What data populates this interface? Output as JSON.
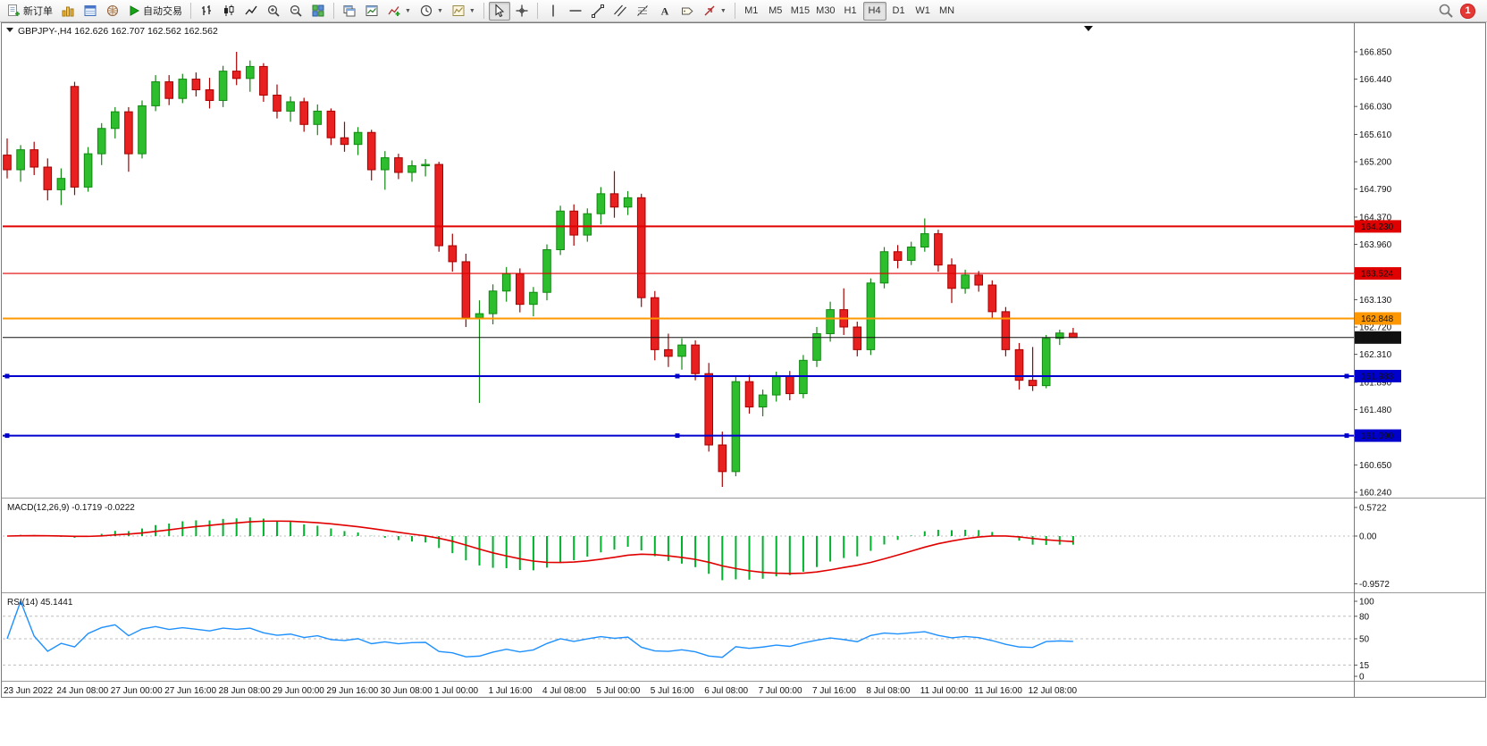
{
  "toolbar": {
    "new_order_label": "新订单",
    "autotrading_label": "自动交易",
    "timeframes": [
      "M1",
      "M5",
      "M15",
      "M30",
      "H1",
      "H4",
      "D1",
      "W1",
      "MN"
    ],
    "active_timeframe": "H4",
    "notification_badge": "1"
  },
  "chart_window": {
    "title": "GBPJPY-,H4  162.626 162.707 162.562 162.562"
  },
  "chart_data": {
    "type": "candlestick",
    "symbol": "GBPJPY-",
    "period": "H4",
    "ohlc_current": {
      "open": 162.626,
      "high": 162.707,
      "low": 162.562,
      "close": 162.562
    },
    "price_axis_ticks": [
      "166.850",
      "166.440",
      "166.030",
      "165.610",
      "165.200",
      "164.790",
      "164.370",
      "163.960",
      "163.540",
      "163.130",
      "162.720",
      "162.310",
      "161.890",
      "161.480",
      "161.070",
      "160.650",
      "160.240"
    ],
    "time_labels": [
      "23 Jun 2022",
      "24 Jun 08:00",
      "27 Jun 00:00",
      "27 Jun 16:00",
      "28 Jun 08:00",
      "29 Jun 00:00",
      "29 Jun 16:00",
      "30 Jun 08:00",
      "1 Jul 00:00",
      "1 Jul 16:00",
      "4 Jul 08:00",
      "5 Jul 00:00",
      "5 Jul 16:00",
      "6 Jul 08:00",
      "7 Jul 00:00",
      "7 Jul 16:00",
      "8 Jul 08:00",
      "11 Jul 00:00",
      "11 Jul 16:00",
      "12 Jul 08:00"
    ],
    "bars_per_time_label": 4,
    "candles": [
      [
        165.3,
        165.55,
        164.95,
        165.08
      ],
      [
        165.08,
        165.45,
        164.9,
        165.38
      ],
      [
        165.38,
        165.5,
        165.0,
        165.12
      ],
      [
        165.12,
        165.25,
        164.62,
        164.78
      ],
      [
        164.78,
        165.1,
        164.55,
        164.95
      ],
      [
        166.33,
        166.4,
        164.7,
        164.82
      ],
      [
        164.82,
        165.42,
        164.75,
        165.32
      ],
      [
        165.32,
        165.78,
        165.15,
        165.7
      ],
      [
        165.7,
        166.02,
        165.55,
        165.95
      ],
      [
        165.95,
        166.02,
        165.05,
        165.32
      ],
      [
        165.32,
        166.12,
        165.25,
        166.04
      ],
      [
        166.04,
        166.5,
        165.96,
        166.4
      ],
      [
        166.4,
        166.5,
        166.05,
        166.15
      ],
      [
        166.15,
        166.52,
        166.08,
        166.44
      ],
      [
        166.44,
        166.54,
        166.18,
        166.28
      ],
      [
        166.28,
        166.46,
        166.0,
        166.12
      ],
      [
        166.12,
        166.64,
        166.02,
        166.56
      ],
      [
        166.56,
        166.85,
        166.35,
        166.45
      ],
      [
        166.45,
        166.72,
        166.25,
        166.63
      ],
      [
        166.63,
        166.68,
        166.1,
        166.2
      ],
      [
        166.2,
        166.36,
        165.85,
        165.96
      ],
      [
        165.96,
        166.18,
        165.8,
        166.1
      ],
      [
        166.1,
        166.16,
        165.65,
        165.76
      ],
      [
        165.76,
        166.06,
        165.6,
        165.96
      ],
      [
        165.96,
        166.0,
        165.45,
        165.56
      ],
      [
        165.56,
        165.8,
        165.35,
        165.46
      ],
      [
        165.46,
        165.72,
        165.3,
        165.64
      ],
      [
        165.64,
        165.68,
        164.92,
        165.08
      ],
      [
        165.08,
        165.36,
        164.78,
        165.26
      ],
      [
        165.26,
        165.32,
        164.94,
        165.04
      ],
      [
        165.04,
        165.22,
        164.9,
        165.14
      ],
      [
        165.14,
        165.24,
        164.98,
        165.16
      ],
      [
        165.16,
        165.2,
        163.85,
        163.94
      ],
      [
        163.94,
        164.12,
        163.55,
        163.7
      ],
      [
        163.7,
        163.82,
        162.72,
        162.86
      ],
      [
        162.86,
        163.12,
        161.58,
        162.92
      ],
      [
        162.92,
        163.36,
        162.76,
        163.26
      ],
      [
        163.26,
        163.62,
        163.1,
        163.52
      ],
      [
        163.52,
        163.6,
        162.94,
        163.06
      ],
      [
        163.06,
        163.32,
        162.88,
        163.24
      ],
      [
        163.24,
        163.96,
        163.12,
        163.88
      ],
      [
        163.88,
        164.54,
        163.8,
        164.46
      ],
      [
        164.46,
        164.56,
        163.94,
        164.1
      ],
      [
        164.1,
        164.5,
        164.0,
        164.42
      ],
      [
        164.42,
        164.82,
        164.26,
        164.72
      ],
      [
        164.72,
        165.06,
        164.36,
        164.52
      ],
      [
        164.52,
        164.76,
        164.4,
        164.66
      ],
      [
        164.66,
        164.72,
        163.02,
        163.16
      ],
      [
        163.16,
        163.26,
        162.22,
        162.38
      ],
      [
        162.38,
        162.62,
        162.12,
        162.28
      ],
      [
        162.28,
        162.55,
        162.08,
        162.45
      ],
      [
        162.45,
        162.52,
        161.92,
        162.02
      ],
      [
        162.02,
        162.18,
        160.85,
        160.95
      ],
      [
        160.95,
        161.15,
        160.32,
        160.55
      ],
      [
        160.55,
        161.98,
        160.48,
        161.9
      ],
      [
        161.9,
        162.0,
        161.42,
        161.52
      ],
      [
        161.52,
        161.78,
        161.38,
        161.7
      ],
      [
        161.7,
        162.05,
        161.6,
        161.98
      ],
      [
        161.98,
        162.06,
        161.62,
        161.72
      ],
      [
        161.72,
        162.3,
        161.65,
        162.22
      ],
      [
        162.22,
        162.72,
        162.12,
        162.62
      ],
      [
        162.62,
        163.1,
        162.5,
        162.98
      ],
      [
        162.98,
        163.3,
        162.6,
        162.72
      ],
      [
        162.72,
        162.8,
        162.28,
        162.38
      ],
      [
        162.38,
        163.45,
        162.3,
        163.38
      ],
      [
        163.38,
        163.92,
        163.3,
        163.85
      ],
      [
        163.85,
        163.95,
        163.6,
        163.72
      ],
      [
        163.72,
        164.0,
        163.65,
        163.92
      ],
      [
        163.92,
        164.35,
        163.85,
        164.12
      ],
      [
        164.12,
        164.18,
        163.55,
        163.65
      ],
      [
        163.65,
        163.75,
        163.08,
        163.3
      ],
      [
        163.3,
        163.58,
        163.22,
        163.5
      ],
      [
        163.5,
        163.56,
        163.25,
        163.35
      ],
      [
        163.35,
        163.42,
        162.85,
        162.95
      ],
      [
        162.95,
        163.02,
        162.28,
        162.38
      ],
      [
        162.38,
        162.48,
        161.78,
        161.92
      ],
      [
        161.92,
        162.42,
        161.76,
        161.84
      ],
      [
        161.84,
        162.6,
        161.8,
        162.55
      ],
      [
        162.55,
        162.68,
        162.45,
        162.63
      ],
      [
        162.626,
        162.707,
        162.562,
        162.562
      ]
    ],
    "hlines": [
      {
        "price": 164.23,
        "label": "164.230",
        "color": "#e00000",
        "width": 2,
        "handles": false
      },
      {
        "price": 163.524,
        "label": "163.524",
        "color": "#e00000",
        "width": 1.2,
        "handles": false
      },
      {
        "price": 162.848,
        "label": "162.848",
        "color": "#ff9800",
        "width": 2,
        "handles": false
      },
      {
        "price": 162.562,
        "label": "162.562",
        "color": "#111111",
        "width": 1,
        "handles": false
      },
      {
        "price": 161.983,
        "label": "161.983",
        "color": "#0000cc",
        "width": 2,
        "handles": true
      },
      {
        "price": 161.09,
        "label": "161.090",
        "color": "#0000cc",
        "width": 2,
        "handles": true
      }
    ],
    "colors": {
      "bull": "#2dbe2d",
      "bull_border": "#128912",
      "bear": "#e82020",
      "bear_border": "#a80000",
      "macd_hist": "#00b22c",
      "macd_signal": "#e00000",
      "rsi_line": "#1e90ff"
    },
    "macd": {
      "label": "MACD(12,26,9) -0.1719 -0.0222",
      "fast": 12,
      "slow": 26,
      "signal": 9,
      "current_macd": -0.1719,
      "current_signal": -0.0222,
      "axis_ticks": [
        "0.5722",
        "0.00",
        "-0.9572"
      ],
      "axis_values": [
        0.5722,
        0,
        -0.9572
      ]
    },
    "rsi": {
      "label": "RSI(14) 45.1441",
      "period": 14,
      "current": 45.1441,
      "axis_ticks": [
        "100",
        "80",
        "50",
        "15",
        "0"
      ],
      "axis_values": [
        100,
        80,
        50,
        15,
        0
      ],
      "levels": [
        80,
        50,
        15
      ]
    }
  }
}
